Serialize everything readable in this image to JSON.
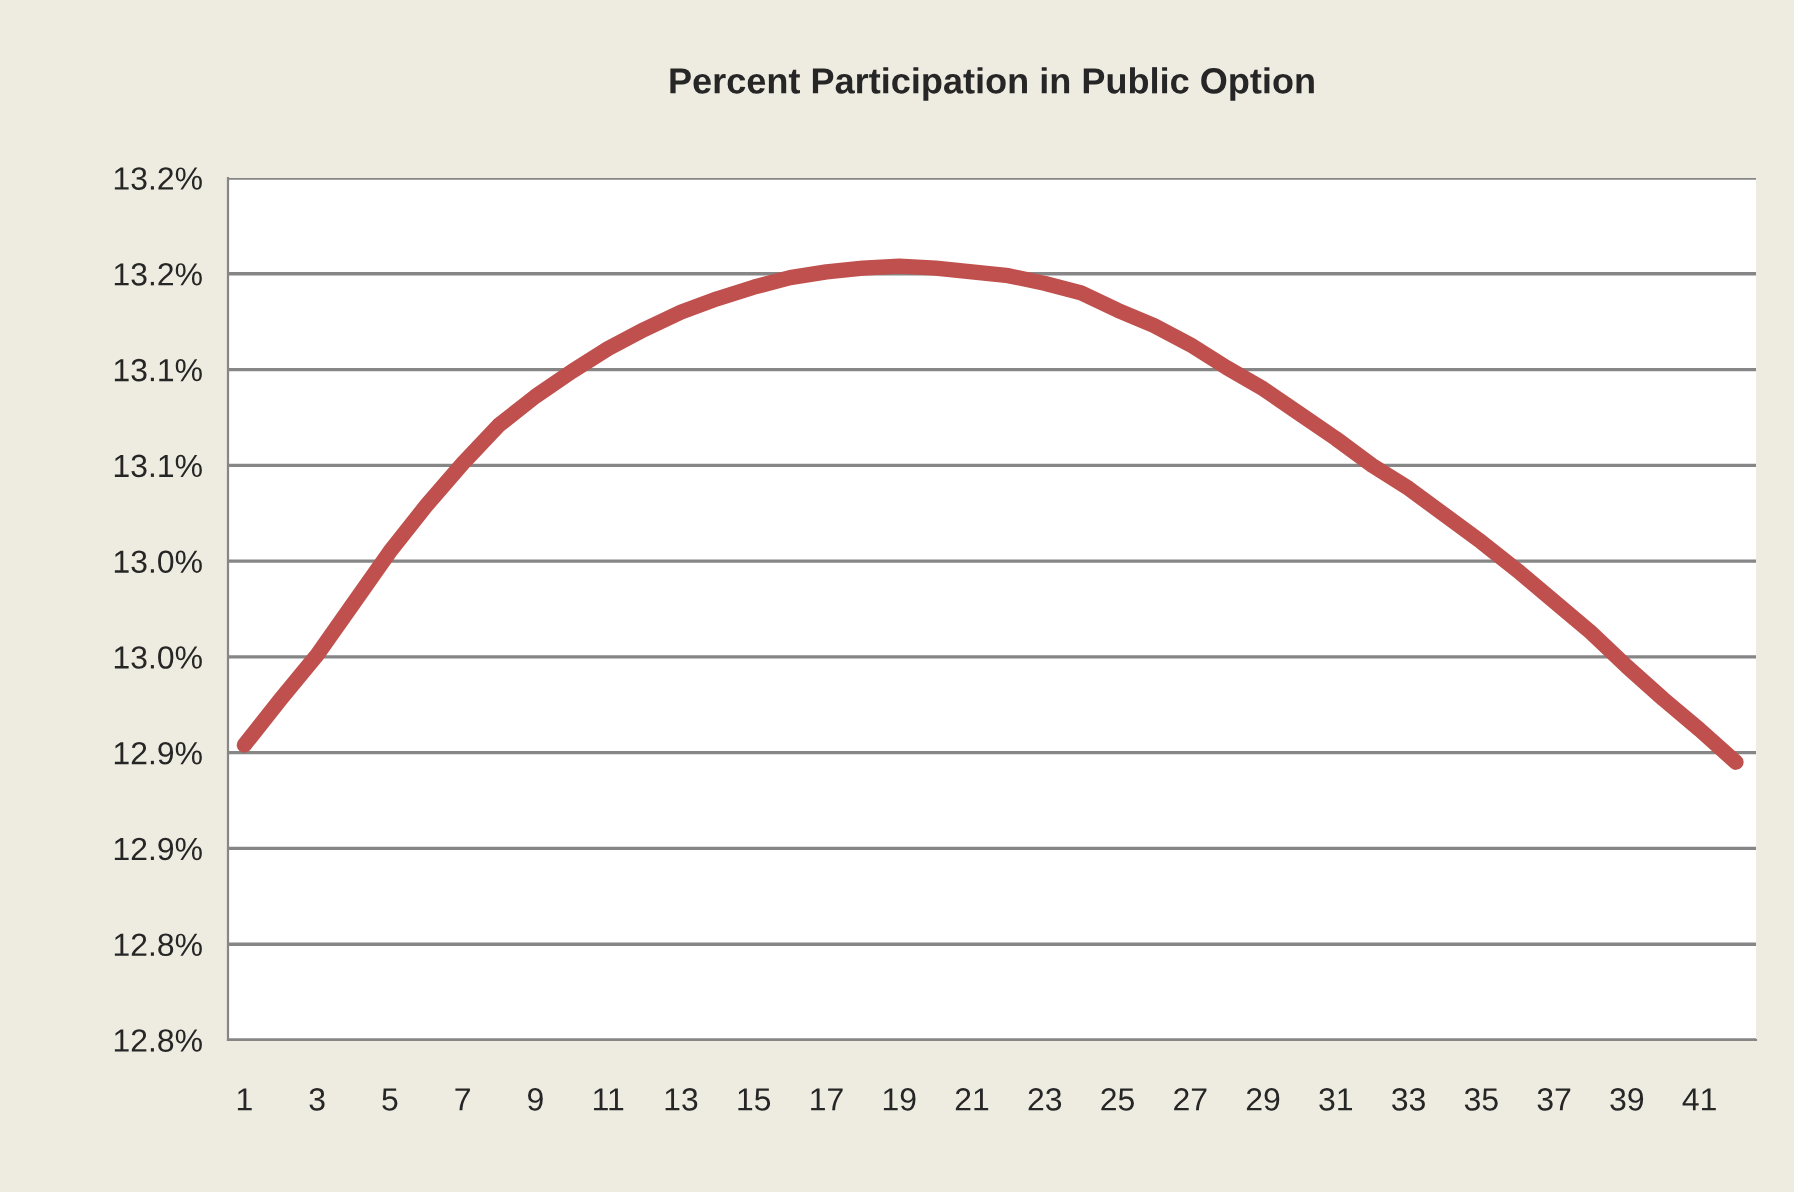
{
  "chart_data": {
    "type": "line",
    "title": "Percent Participation in Public Option",
    "categories": [
      "1",
      null,
      "3",
      null,
      "5",
      null,
      "7",
      null,
      "9",
      null,
      "11",
      null,
      "13",
      null,
      "15",
      null,
      "17",
      null,
      "19",
      null,
      "21",
      null,
      "23",
      null,
      "25",
      null,
      "27",
      null,
      "29",
      null,
      "31",
      null,
      "33",
      null,
      "35",
      null,
      "37",
      null,
      "39",
      null,
      "41",
      null
    ],
    "series": [
      {
        "color": "#c0504d",
        "values": [
          12.904,
          12.928,
          12.951,
          12.978,
          13.005,
          13.029,
          13.051,
          13.071,
          13.086,
          13.099,
          13.111,
          13.121,
          13.13,
          13.137,
          13.143,
          13.148,
          13.151,
          13.153,
          13.154,
          13.153,
          13.151,
          13.149,
          13.145,
          13.14,
          13.131,
          13.123,
          13.113,
          13.101,
          13.09,
          13.077,
          13.064,
          13.05,
          13.038,
          13.024,
          13.01,
          12.995,
          12.979,
          12.963,
          12.945,
          12.928,
          12.912,
          12.895
        ]
      }
    ],
    "ylim": [
      12.75,
      13.2
    ],
    "yticks": [
      {
        "value": 12.75,
        "label": "12.8%"
      },
      {
        "value": 12.8,
        "label": "12.8%"
      },
      {
        "value": 12.85,
        "label": "12.9%"
      },
      {
        "value": 12.9,
        "label": "12.9%"
      },
      {
        "value": 12.95,
        "label": "13.0%"
      },
      {
        "value": 13.0,
        "label": "13.0%"
      },
      {
        "value": 13.05,
        "label": "13.1%"
      },
      {
        "value": 13.1,
        "label": "13.1%"
      },
      {
        "value": 13.15,
        "label": "13.2%"
      },
      {
        "value": 13.2,
        "label": "13.2%"
      }
    ],
    "grid": "y",
    "marker": "none",
    "line_style": "solid",
    "legend": false
  }
}
